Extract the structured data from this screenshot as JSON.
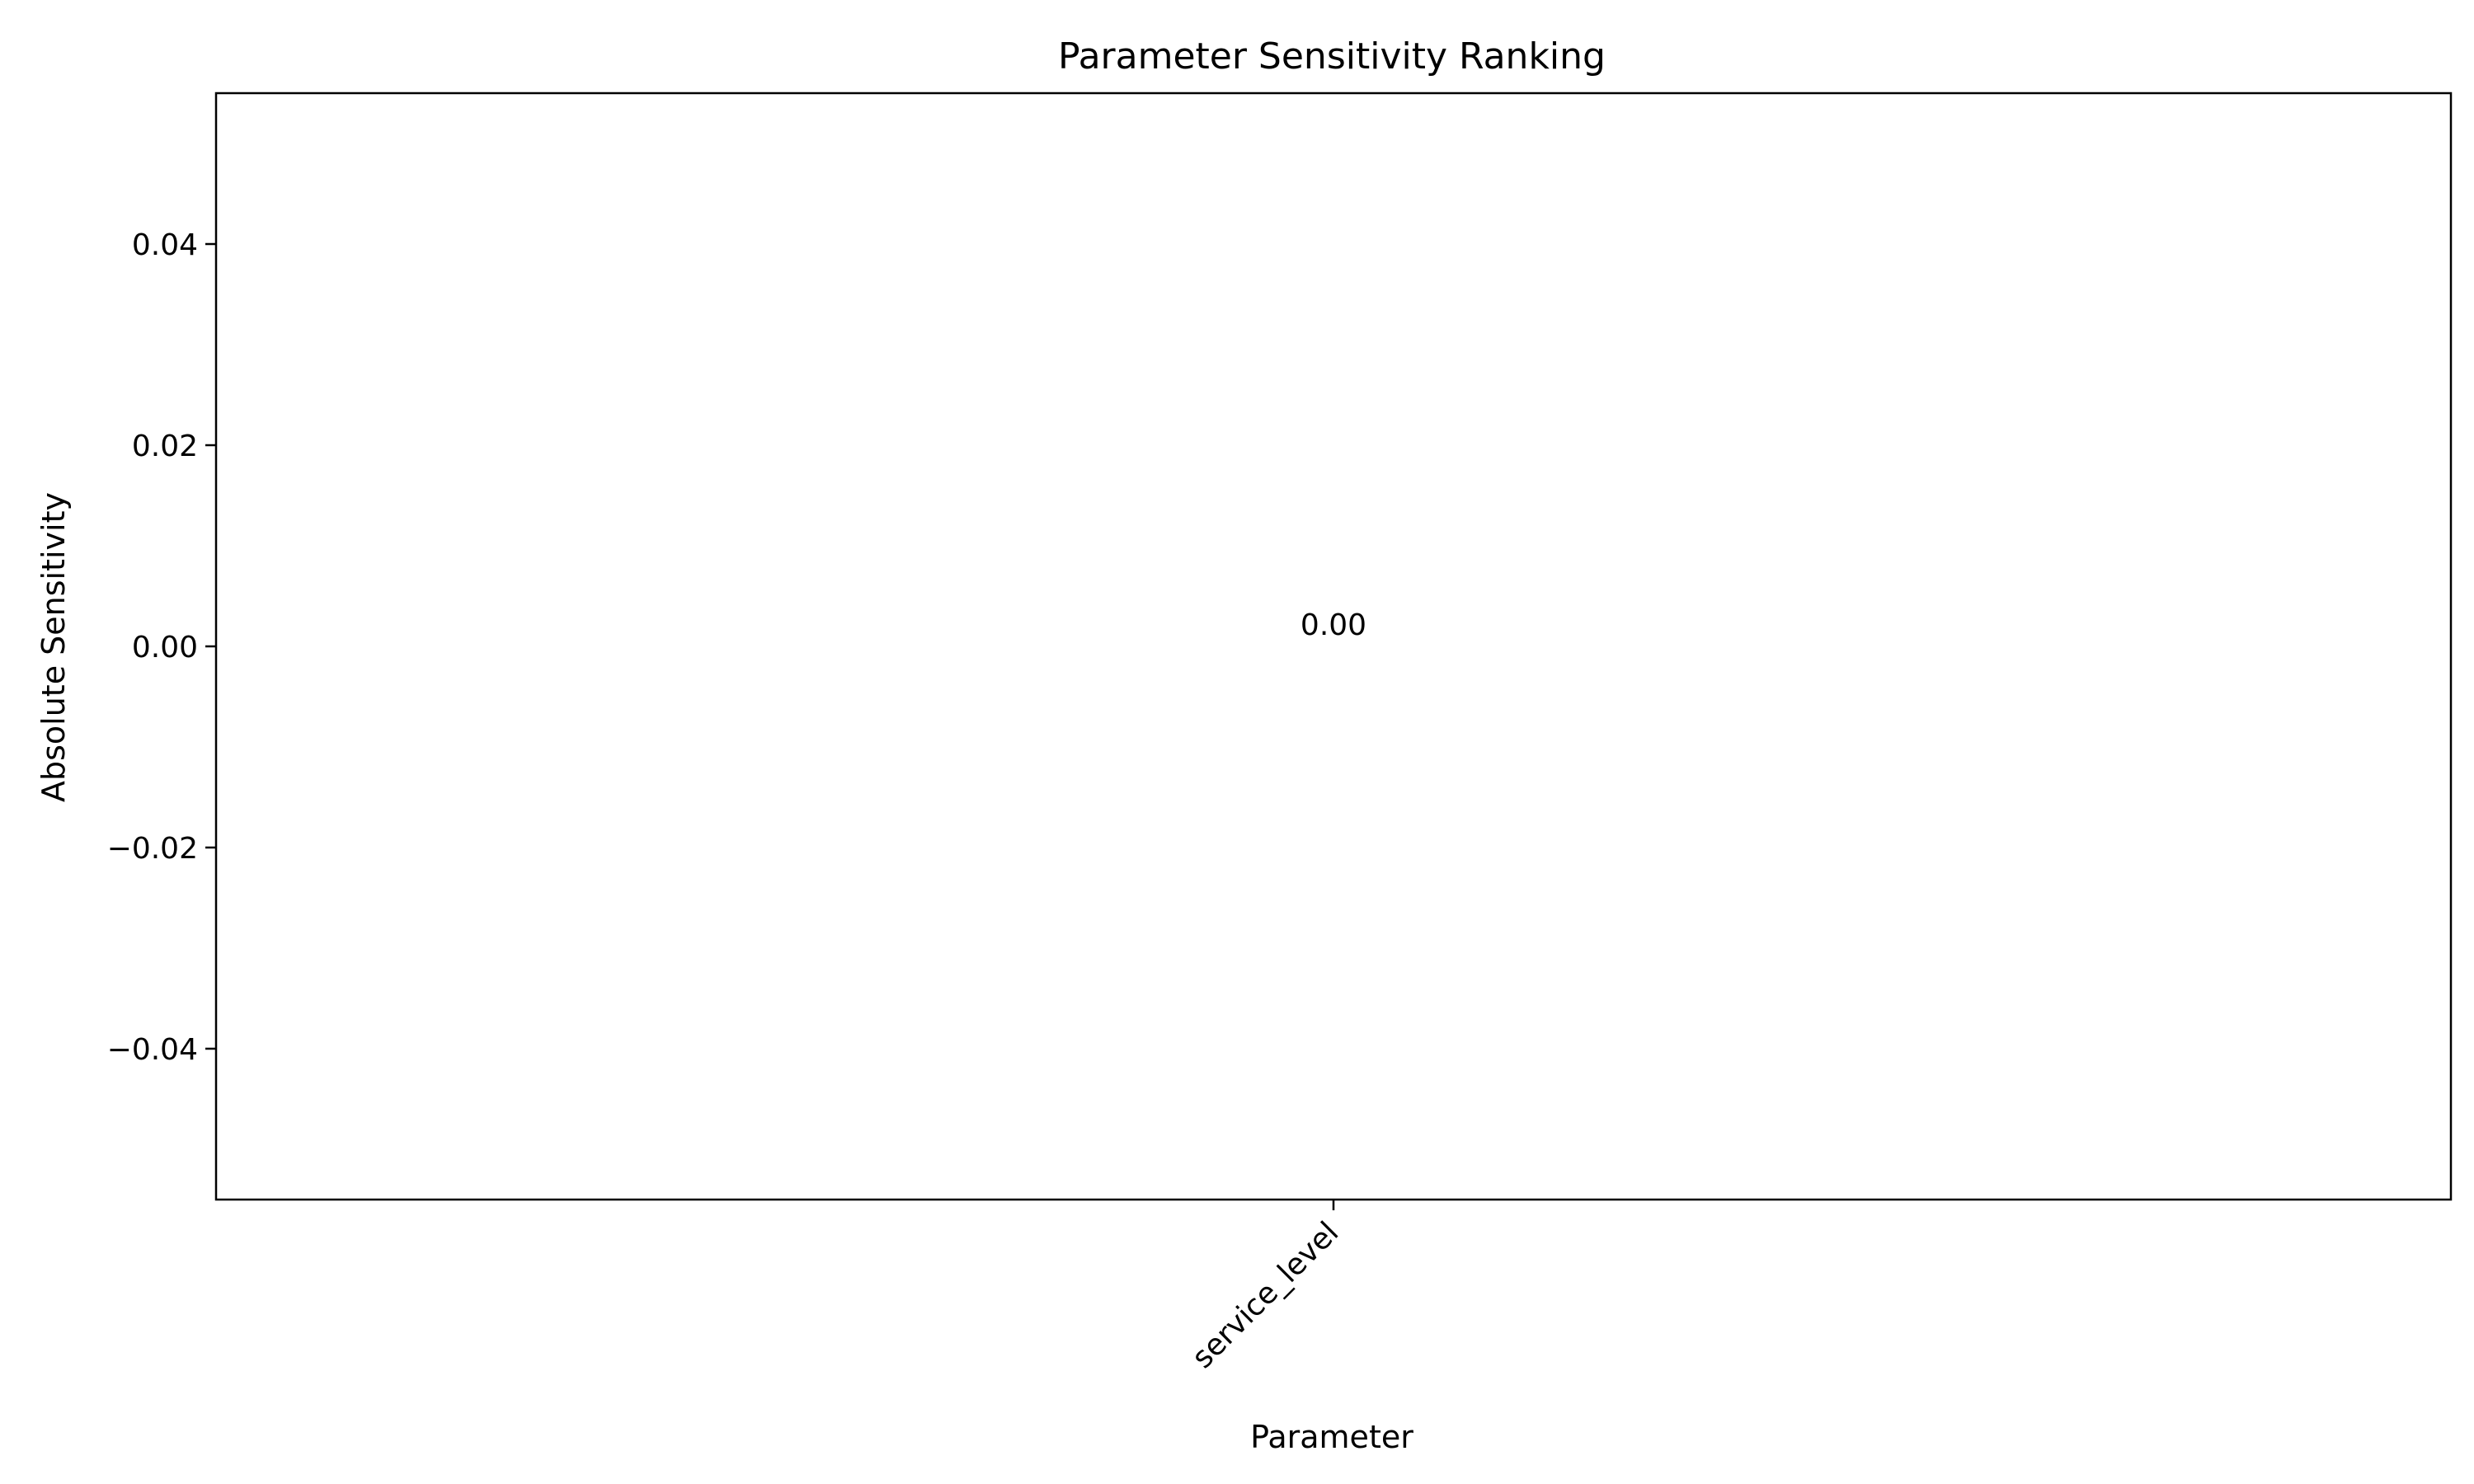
{
  "chart_data": {
    "type": "bar",
    "title": "Parameter Sensitivity Ranking",
    "xlabel": "Parameter",
    "ylabel": "Absolute Sensitivity",
    "categories": [
      "service_level"
    ],
    "values": [
      0.0
    ],
    "value_labels": [
      "0.00"
    ],
    "ylim": [
      -0.055,
      0.055
    ],
    "yticks": [
      -0.04,
      -0.02,
      0.0,
      0.02,
      0.04
    ],
    "ytick_labels": [
      "−0.04",
      "−0.02",
      "0.00",
      "0.02",
      "0.04"
    ],
    "xtick_rotation_deg": 45,
    "grid": false,
    "legend": "none",
    "colors": {
      "bar": "#1f77b4",
      "axes": "#000000",
      "text": "#000000",
      "background": "#ffffff"
    }
  }
}
